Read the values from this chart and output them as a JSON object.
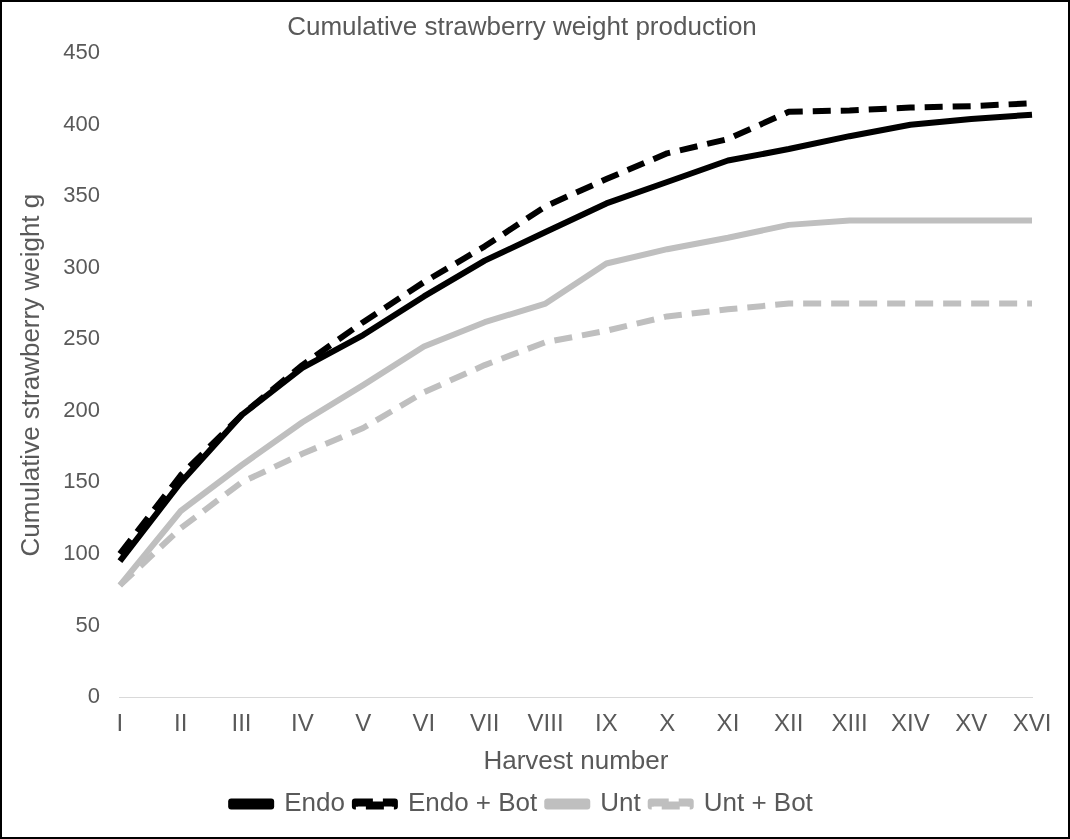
{
  "chart_data": {
    "type": "line",
    "title": "Cumulative strawberry weight production",
    "xlabel": "Harvest number",
    "ylabel": "Cumulative strawberry weight g",
    "categories": [
      "I",
      "II",
      "III",
      "IV",
      "V",
      "VI",
      "VII",
      "VIII",
      "IX",
      "X",
      "XI",
      "XII",
      "XIII",
      "XIV",
      "XV",
      "XVI"
    ],
    "series": [
      {
        "name": "Endo",
        "color": "#000000",
        "line_style": "solid",
        "values": [
          95,
          150,
          197,
          230,
          253,
          280,
          305,
          325,
          345,
          360,
          375,
          383,
          392,
          400,
          404,
          407
        ]
      },
      {
        "name": "Endo + Bot",
        "color": "#000000",
        "line_style": "dashed",
        "values": [
          100,
          155,
          197,
          232,
          262,
          290,
          315,
          343,
          362,
          380,
          390,
          409,
          410,
          412,
          413,
          415
        ]
      },
      {
        "name": "Unt",
        "color": "#bfbfbf",
        "line_style": "solid",
        "values": [
          78,
          130,
          162,
          192,
          218,
          245,
          262,
          275,
          303,
          313,
          321,
          330,
          333,
          333,
          333,
          333
        ]
      },
      {
        "name": "Unt + Bot",
        "color": "#bfbfbf",
        "line_style": "dashed",
        "values": [
          78,
          118,
          150,
          170,
          188,
          213,
          232,
          248,
          256,
          266,
          271,
          275,
          275,
          275,
          275,
          275
        ]
      }
    ],
    "ylim": [
      0,
      450
    ],
    "yticks": [
      0,
      50,
      100,
      150,
      200,
      250,
      300,
      350,
      400,
      450
    ],
    "grid": false,
    "legend": "bottom",
    "marker": "none"
  }
}
